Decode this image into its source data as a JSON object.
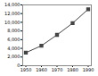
{
  "chart_data": {
    "type": "line",
    "x": [
      1950,
      1960,
      1970,
      1980,
      1990
    ],
    "values": [
      3000,
      4600,
      7100,
      9800,
      13000
    ],
    "color": "#444444",
    "marker": "square",
    "xlim": [
      1948,
      1992
    ],
    "xticks": [
      1950,
      1960,
      1970,
      1980,
      1990
    ],
    "ylim": [
      0,
      14000
    ],
    "yticks": [
      0,
      {
        "value": 2000,
        "label": "2,000"
      },
      {
        "value": 4000,
        "label": "4,000"
      },
      {
        "value": 6000,
        "label": "6,000"
      },
      {
        "value": 8000,
        "label": "8,000"
      },
      {
        "value": 10000,
        "label": "10,000"
      },
      {
        "value": 12000,
        "label": "12,000"
      },
      {
        "value": 14000,
        "label": "14,000"
      }
    ],
    "grid": false
  }
}
